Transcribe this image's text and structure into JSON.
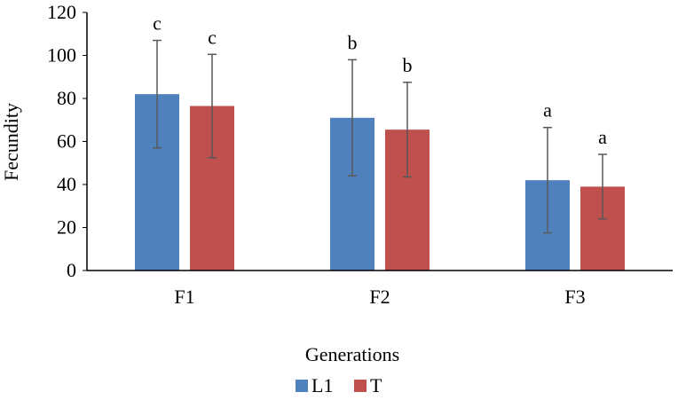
{
  "chart_data": {
    "type": "bar",
    "title": "",
    "xlabel": "Generations",
    "ylabel": "Fecundity",
    "categories": [
      "F1",
      "F2",
      "F3"
    ],
    "ylim": [
      0,
      120
    ],
    "yticks": [
      0,
      20,
      40,
      60,
      80,
      100,
      120
    ],
    "series": [
      {
        "name": "L1",
        "color": "#4f81bd",
        "values": [
          82,
          71,
          42
        ],
        "error": [
          25,
          27,
          24.5
        ],
        "labels": [
          "c",
          "b",
          "a"
        ]
      },
      {
        "name": "T",
        "color": "#c0504d",
        "values": [
          76.5,
          65.5,
          39
        ],
        "error": [
          24,
          22,
          15
        ],
        "labels": [
          "c",
          "b",
          "a"
        ]
      }
    ],
    "legend_position": "bottom",
    "grid": false
  }
}
